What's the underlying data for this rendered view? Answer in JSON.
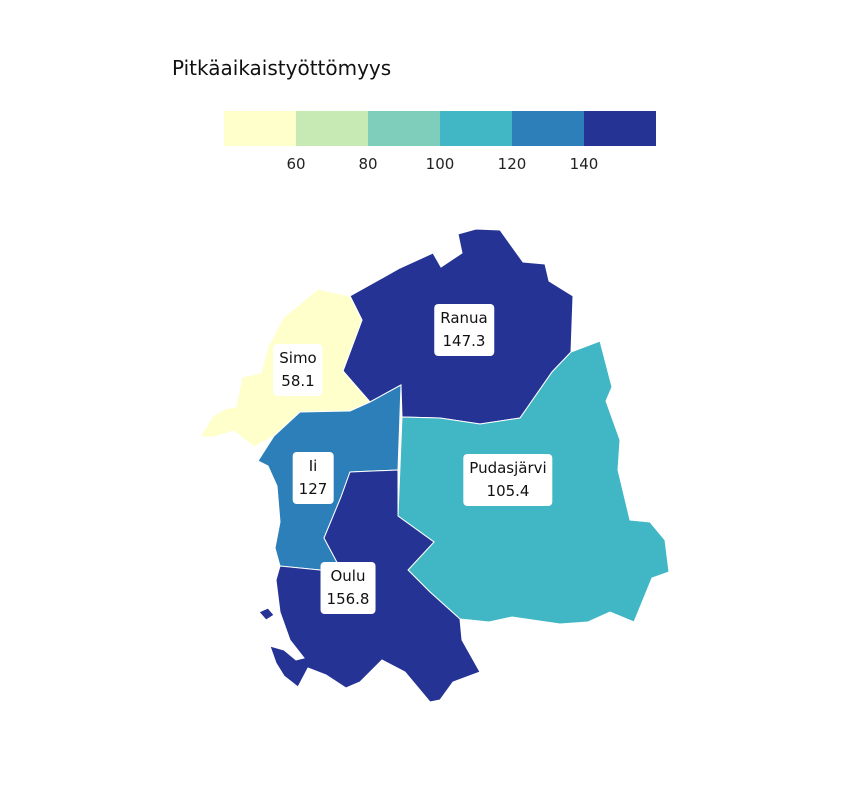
{
  "legend": {
    "title": "Pitkäaikaistyöttömyys",
    "colors": [
      "#ffffcc",
      "#c7e9b4",
      "#7fcdbb",
      "#41b6c4",
      "#2c7fb8",
      "#253494"
    ],
    "ticks": [
      "60",
      "80",
      "100",
      "120",
      "140"
    ]
  },
  "regions": [
    {
      "name": "Ranua",
      "value": "147.3",
      "color": "#253494"
    },
    {
      "name": "Simo",
      "value": "58.1",
      "color": "#ffffcc"
    },
    {
      "name": "Ii",
      "value": "127",
      "color": "#2c7fb8"
    },
    {
      "name": "Pudasjärvi",
      "value": "105.4",
      "color": "#41b6c4"
    },
    {
      "name": "Oulu",
      "value": "156.8",
      "color": "#253494"
    }
  ]
}
